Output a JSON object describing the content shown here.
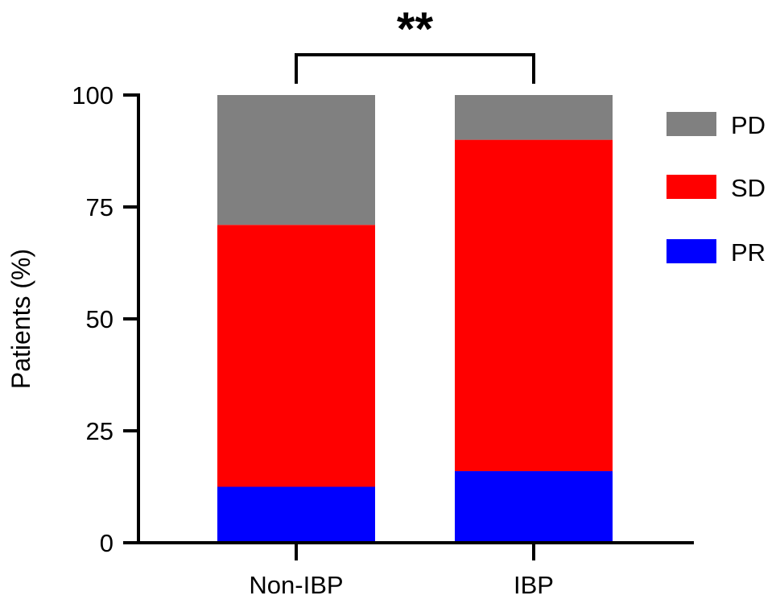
{
  "chart_data": {
    "type": "bar",
    "stacked": true,
    "categories": [
      "Non-IBP",
      "IBP"
    ],
    "series": [
      {
        "name": "PR",
        "values": [
          12.5,
          16.0
        ],
        "color": "#0000ff"
      },
      {
        "name": "SD",
        "values": [
          58.5,
          74.0
        ],
        "color": "#ff0000"
      },
      {
        "name": "PD",
        "values": [
          29.0,
          10.0
        ],
        "color": "#808080"
      }
    ],
    "ylabel": "Patients (%)",
    "xlabel": "",
    "ylim": [
      0,
      100
    ],
    "yticks": [
      0,
      25,
      50,
      75,
      100
    ],
    "legend_order": [
      "PD",
      "SD",
      "PR"
    ],
    "legend_position": "right",
    "grid": false,
    "annotation": {
      "text": "**",
      "between": [
        "Non-IBP",
        "IBP"
      ]
    }
  }
}
